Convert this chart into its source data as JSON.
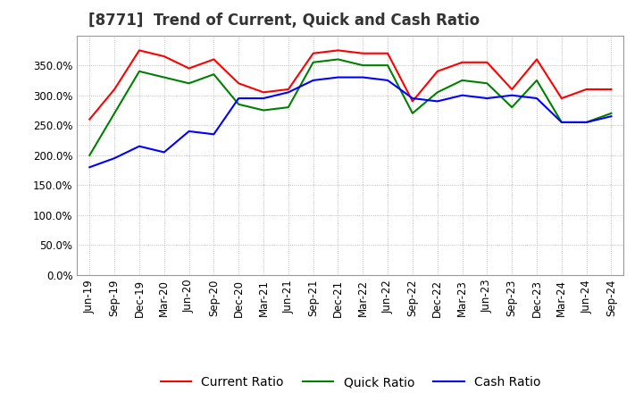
{
  "title": "[8771]  Trend of Current, Quick and Cash Ratio",
  "x_labels": [
    "Jun-19",
    "Sep-19",
    "Dec-19",
    "Mar-20",
    "Jun-20",
    "Sep-20",
    "Dec-20",
    "Mar-21",
    "Jun-21",
    "Sep-21",
    "Dec-21",
    "Mar-22",
    "Jun-22",
    "Sep-22",
    "Dec-22",
    "Mar-23",
    "Jun-23",
    "Sep-23",
    "Dec-23",
    "Mar-24",
    "Jun-24",
    "Sep-24"
  ],
  "current_ratio": [
    260,
    310,
    375,
    365,
    345,
    360,
    320,
    305,
    310,
    370,
    375,
    370,
    370,
    290,
    340,
    355,
    355,
    310,
    360,
    295,
    310,
    310
  ],
  "quick_ratio": [
    200,
    270,
    340,
    330,
    320,
    335,
    285,
    275,
    280,
    355,
    360,
    350,
    350,
    270,
    305,
    325,
    320,
    280,
    325,
    255,
    255,
    270
  ],
  "cash_ratio": [
    180,
    195,
    215,
    205,
    240,
    235,
    295,
    295,
    305,
    325,
    330,
    330,
    325,
    295,
    290,
    300,
    295,
    300,
    295,
    255,
    255,
    265
  ],
  "current_color": "#ff0000",
  "quick_color": "#008000",
  "cash_color": "#0000ff",
  "ylim": [
    0,
    400
  ],
  "yticks": [
    0,
    50,
    100,
    150,
    200,
    250,
    300,
    350
  ],
  "background_color": "#ffffff",
  "plot_bg_color": "#f0f0f0",
  "grid_color": "#aaaaaa",
  "title_fontsize": 12,
  "legend_fontsize": 10,
  "tick_fontsize": 8.5
}
